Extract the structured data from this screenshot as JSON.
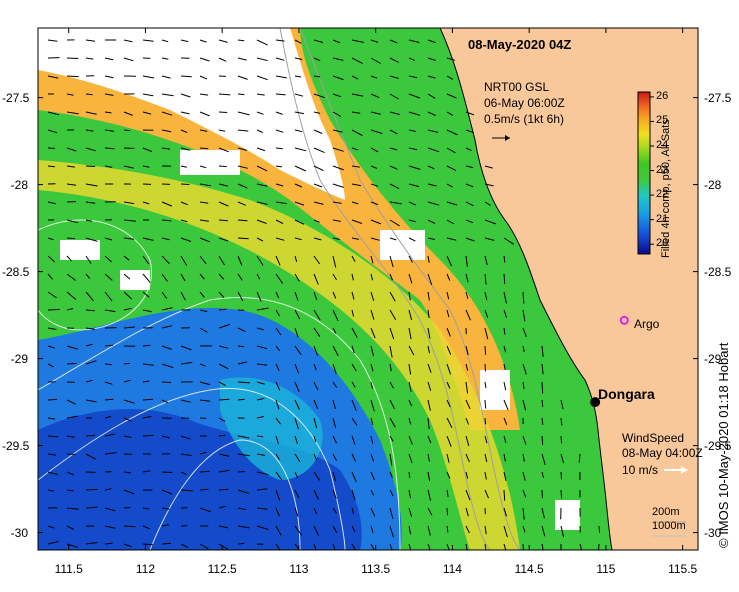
{
  "title": "08-May-2020 04Z",
  "credit": "© IMOS 10-May-2020 01:18 Hobart",
  "colors": {
    "land": "#f8c89a",
    "cloud": "#ffffff",
    "coast_line": "#000000"
  },
  "axes": {
    "lon_min": 111.3,
    "lon_max": 115.6,
    "lat_min": -30.1,
    "lat_max": -27.1,
    "x_ticks": [
      "111.5",
      "112",
      "112.5",
      "113",
      "113.5",
      "114",
      "114.5",
      "115",
      "115.5"
    ],
    "y_ticks": [
      "-27.5",
      "-28",
      "-28.5",
      "-29",
      "-29.5",
      "-30"
    ]
  },
  "colorbar": {
    "label": "Filled 4h comp, p50, All Sats",
    "ticks": [
      "26",
      "25",
      "24",
      "23",
      "22",
      "21",
      "20"
    ],
    "min": 19.6,
    "max": 26.2
  },
  "current_legend": {
    "line1": "NRT00 GSL",
    "line2": "06-May 06:00Z",
    "line3": "0.5m/s (1kt 6h)"
  },
  "wind_legend": {
    "line1": "WindSpeed",
    "line2": "08-May 04:00Z",
    "line3": "10 m/s"
  },
  "depth_legend": {
    "line1": "200m",
    "line2": "1000m"
  },
  "places": {
    "dongara": {
      "label": "Dongara",
      "lon": 114.93,
      "lat": -29.25
    },
    "argo": {
      "label": "Argo",
      "lon": 115.12,
      "lat": -28.78
    }
  }
}
